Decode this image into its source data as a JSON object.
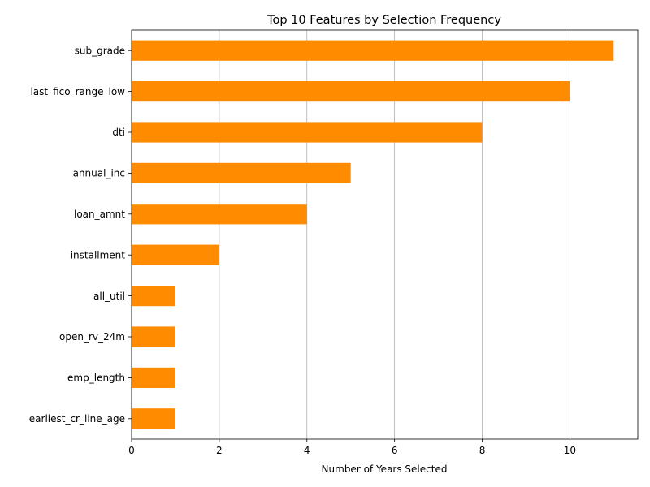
{
  "chart_data": {
    "type": "bar",
    "orientation": "horizontal",
    "title": "Top 10 Features by Selection Frequency",
    "xlabel": "Number of Years Selected",
    "ylabel": "",
    "categories": [
      "sub_grade",
      "last_fico_range_low",
      "dti",
      "annual_inc",
      "loan_amnt",
      "installment",
      "all_util",
      "open_rv_24m",
      "emp_length",
      "earliest_cr_line_age"
    ],
    "values": [
      11,
      10,
      8,
      5,
      4,
      2,
      1,
      1,
      1,
      1
    ],
    "xlim": [
      0,
      11.55
    ],
    "xticks": [
      0,
      2,
      4,
      6,
      8,
      10
    ],
    "xtick_labels": [
      "0",
      "2",
      "4",
      "6",
      "8",
      "10"
    ],
    "grid": "x-axis vertical lines",
    "legend": "none",
    "bar_color": "#ff8c00"
  }
}
